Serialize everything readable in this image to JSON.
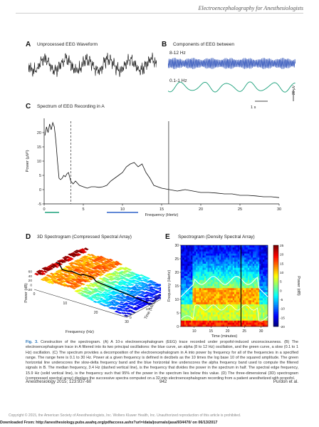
{
  "running_head": "Electroencephalography for Anesthesiologists",
  "panels": {
    "A": {
      "label": "A",
      "title": "Unprocessed EEG Waveform"
    },
    "B": {
      "label": "B",
      "title": "Components of EEG between",
      "alpha_label": "8-12 Hz",
      "slow_label": "0.1-1 Hz",
      "time_scale": "1 s",
      "amp_scale": "20 µV"
    },
    "C": {
      "label": "C",
      "title": "Spectrum of EEG Recording in A"
    },
    "D": {
      "label": "D",
      "title": "3D Spectrogram (Compressed Spectral Array)"
    },
    "E": {
      "label": "E",
      "title": "Spectrogram (Density Spectral Array)"
    }
  },
  "chart_data": [
    {
      "type": "line",
      "id": "C",
      "title": "Spectrum of EEG Recording in A",
      "xlabel": "Frequency (Hertz)",
      "ylabel": "Power (µV²)",
      "xlim": [
        0,
        30
      ],
      "ylim": [
        -5,
        25
      ],
      "xticks": [
        0,
        5,
        10,
        15,
        20,
        25,
        30
      ],
      "yticks": [
        -5,
        0,
        5,
        10,
        15,
        20
      ],
      "grid": false,
      "series": [
        {
          "x": [
            0.1,
            0.3,
            0.5,
            0.7,
            0.9,
            1.1,
            1.3,
            1.5,
            1.7,
            1.9,
            2.1,
            2.3,
            2.5,
            2.7,
            2.9,
            3.1,
            3.4,
            3.7,
            4.0,
            4.5,
            5.0,
            5.5,
            6.0,
            6.5,
            7.0,
            7.5,
            8.0,
            8.5,
            9.0,
            9.5,
            10.0,
            10.5,
            11.0,
            11.5,
            12.0,
            12.5,
            13.0,
            13.5,
            14.0,
            15.0,
            16.0,
            17.0,
            18.0,
            19.0,
            20.0,
            21.0,
            22.0,
            23.0,
            24.0,
            25.0,
            26.0,
            27.0,
            28.0,
            29.0,
            30.0
          ],
          "y": [
            19,
            22,
            20,
            23,
            21,
            23.5,
            22,
            17,
            10,
            4,
            3.5,
            4,
            5,
            4.5,
            5.5,
            6,
            3,
            2,
            3,
            1.5,
            1,
            0.5,
            1,
            1,
            0.8,
            1,
            1.5,
            3,
            4,
            5,
            6,
            8,
            9,
            9.5,
            8,
            9,
            6,
            4,
            1.5,
            0.5,
            0,
            -0.5,
            0,
            -0.5,
            -1,
            -1,
            -1.2,
            -1.5,
            -1.5,
            -2,
            -2,
            -2.2,
            -2.5,
            -2.5,
            -2.8
          ]
        }
      ],
      "annotations": [
        {
          "kind": "dashed-vertical",
          "x": 3.4,
          "meaning": "median frequency"
        },
        {
          "kind": "solid-vertical",
          "x": 15.9,
          "meaning": "spectral edge frequency"
        },
        {
          "kind": "green-horizontal",
          "x": [
            0.1,
            1
          ],
          "meaning": "slow-delta band"
        },
        {
          "kind": "blue-horizontal",
          "x": [
            8,
            12
          ],
          "meaning": "alpha band"
        }
      ]
    },
    {
      "type": "surface",
      "id": "D",
      "title": "3D Spectrogram (Compressed Spectral Array)",
      "xlabel": "Frequency (Hz)",
      "ylabel": "Power (dB)",
      "zlabel": "Time (Minutes)",
      "xticks": [
        0,
        10,
        20,
        30
      ],
      "yticks": [
        -20,
        0,
        20,
        40,
        60
      ],
      "zticks": [
        0,
        10,
        20,
        30
      ],
      "colormap": "jet"
    },
    {
      "type": "heatmap",
      "id": "E",
      "title": "Spectrogram (Density Spectral Array)",
      "xlabel": "Time (minutes)",
      "ylabel": "Frequency (Hertz)",
      "colorbar_label": "Power (dB)",
      "xticks": [
        10,
        15,
        20,
        25,
        30
      ],
      "yticks": [
        0,
        5,
        10,
        15,
        20,
        25,
        30
      ],
      "colorbar_ticks": [
        -20,
        -15,
        -10,
        -5,
        0,
        5,
        10,
        15,
        20,
        25
      ],
      "colorbar_range": [
        -20,
        25
      ],
      "colormap": "jet",
      "annotations": [
        {
          "kind": "solid-vertical",
          "time": 24,
          "meaning": "snapshot time of panels A-C"
        },
        {
          "kind": "white-curve",
          "meaning": "spectral edge frequency"
        }
      ]
    }
  ],
  "caption": {
    "label": "Fig. 3.",
    "text": "Construction of the spectrogram. (A) A 10-s electroencephalogram (EEG) trace recorded under propofol-induced unconsciousness. (B) The electroencephalogram trace in A filtered into its two principal oscillations: the blue curve, an alpha (8 to 12 Hz) oscillation, and the green curve, a slow (0.1 to 1 Hz) oscillation. (C) The spectrum provides a decomposition of the electroencephalogram in A into power by frequency for all of the frequencies in a specified range. The range here is 0.1 to 30 Hz. Power at a given frequency is defined in decibels as the 10 times the log base 10 of the squared amplitude. The green horizontal line underscores the slow-delta frequency band and the blue horizontal line underscores the alpha frequency band used to compute the filtered signals in B. The median frequency, 3.4 Hz (dashed vertical line), is the frequency that divides the power in the spectrum in half. The spectral edge frequency, 15.9 Hz (solid vertical line), is the frequency such that 95% of the power in the spectrum lies below this value. (D) The three-dimensional (3D) spectrogram (compressed spectral array) displays the successive spectra computed on a 32-min electroencephalogram recording from a patient anesthetized with propofol."
  },
  "footer": {
    "journal": "Anesthesiology 2015; 123:937-60",
    "page": "942",
    "author": "Purdon et al."
  },
  "copyright": "Copyright © 2015, the American Society of Anesthesiologists, Inc. Wolters Kluwer Health, Inc. Unauthorized reproduction of this article is prohibited.",
  "download_note": "Downloaded From: http://anesthesiology.pubs.asahq.org/pdfaccess.ashx?url=/data/journals/jasa/934470/ on 06/13/2017",
  "colors": {
    "alpha_trace": "#2b4fb8",
    "slow_trace": "#1aa07a",
    "band_slow": "#1aa07a",
    "band_alpha": "#2f62c9",
    "caption_label": "#1f6eb5"
  }
}
